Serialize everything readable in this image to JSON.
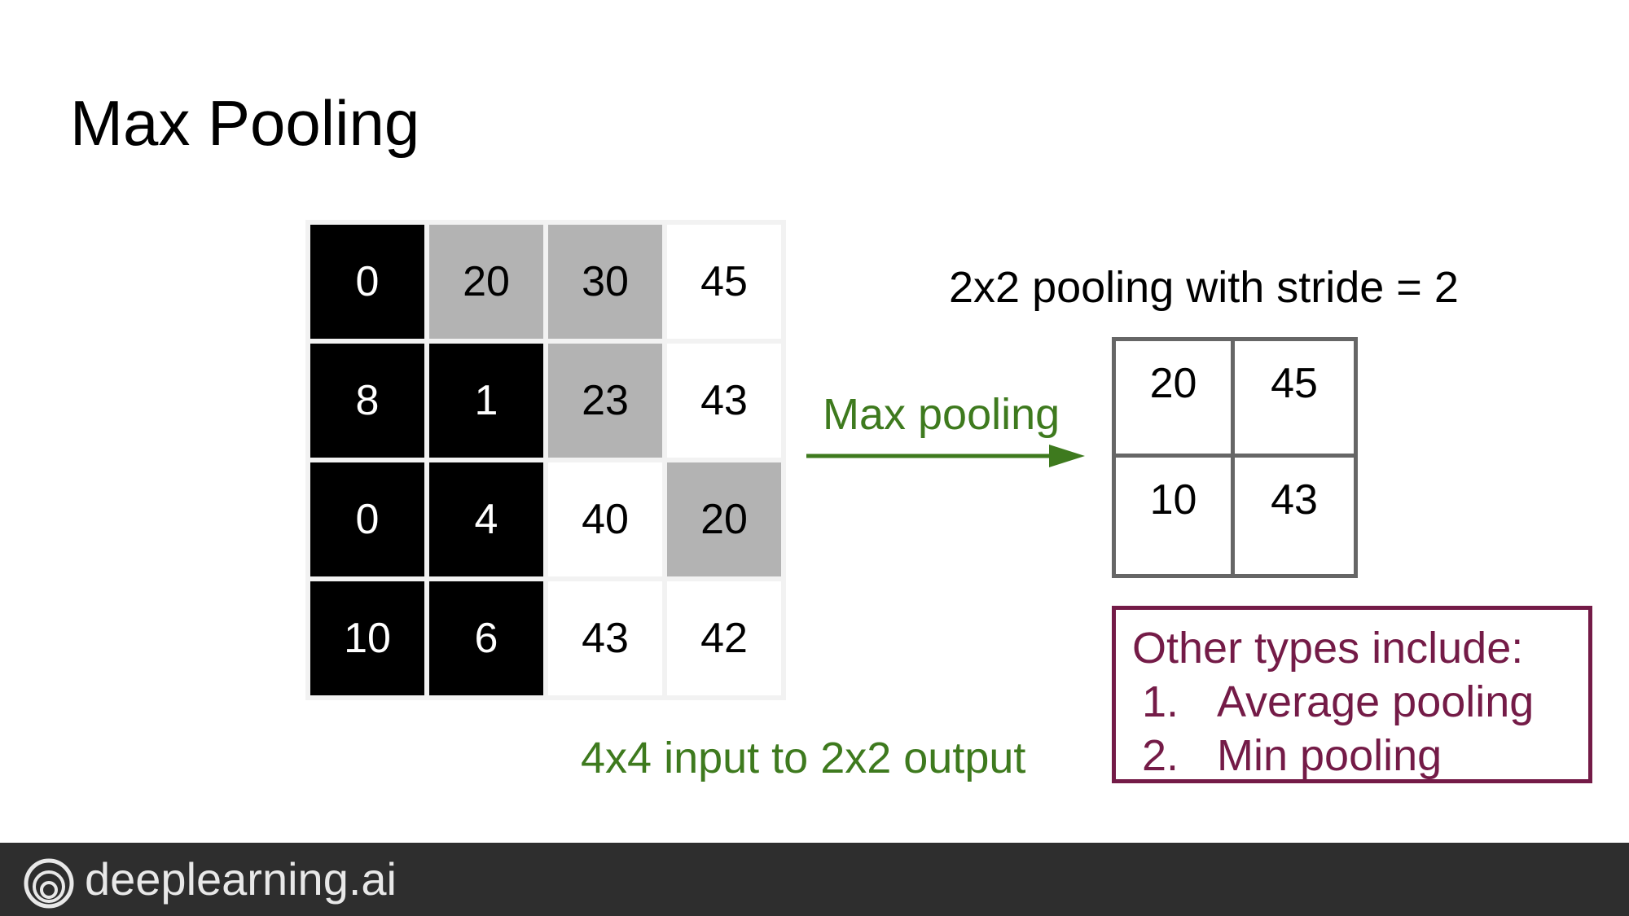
{
  "title": "Max Pooling",
  "input_matrix": [
    [
      {
        "v": "0",
        "shade": "black"
      },
      {
        "v": "20",
        "shade": "grey"
      },
      {
        "v": "30",
        "shade": "grey"
      },
      {
        "v": "45",
        "shade": "white"
      }
    ],
    [
      {
        "v": "8",
        "shade": "black"
      },
      {
        "v": "1",
        "shade": "black"
      },
      {
        "v": "23",
        "shade": "grey"
      },
      {
        "v": "43",
        "shade": "white"
      }
    ],
    [
      {
        "v": "0",
        "shade": "black"
      },
      {
        "v": "4",
        "shade": "black"
      },
      {
        "v": "40",
        "shade": "white"
      },
      {
        "v": "20",
        "shade": "grey"
      }
    ],
    [
      {
        "v": "10",
        "shade": "black"
      },
      {
        "v": "6",
        "shade": "black"
      },
      {
        "v": "43",
        "shade": "white"
      },
      {
        "v": "42",
        "shade": "white"
      }
    ]
  ],
  "pooling_label": "2x2 pooling with stride = 2",
  "arrow_label": "Max pooling",
  "output_matrix": [
    [
      "20",
      "45"
    ],
    [
      "10",
      "43"
    ]
  ],
  "io_label": "4x4 input to 2x2 output",
  "other_types": {
    "heading": "Other types include:",
    "items": [
      {
        "num": "1.",
        "text": "Average pooling"
      },
      {
        "num": "2.",
        "text": "Min pooling"
      }
    ]
  },
  "footer": {
    "brand": "deeplearning.ai",
    "logo_icon": "concentric-circles-icon"
  },
  "colors": {
    "green": "#3e7a1e",
    "maroon": "#741b47",
    "footer_bg": "#2e2e2e",
    "grey_cell": "#b3b3b3"
  }
}
